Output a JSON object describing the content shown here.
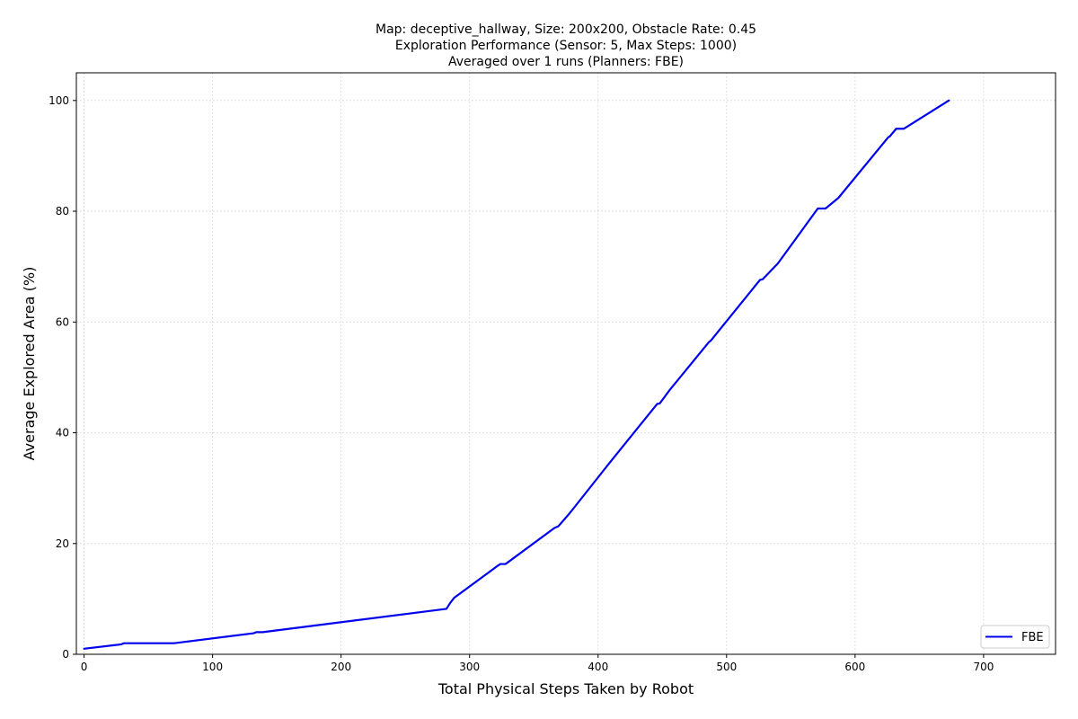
{
  "chart_data": {
    "type": "line",
    "title_lines": [
      "Map: deceptive_hallway, Size: 200x200, Obstacle Rate: 0.45",
      "Exploration Performance (Sensor: 5, Max Steps: 1000)",
      "Averaged over 1 runs (Planners: FBE)"
    ],
    "xlabel": "Total Physical Steps Taken by Robot",
    "ylabel": "Average Explored Area (%)",
    "xlim": [
      -6,
      756
    ],
    "ylim": [
      0,
      105
    ],
    "xticks": [
      0,
      100,
      200,
      300,
      400,
      500,
      600,
      700
    ],
    "yticks": [
      0,
      20,
      40,
      60,
      80,
      100
    ],
    "grid": true,
    "legend_position": "lower-right",
    "series": [
      {
        "name": "FBE",
        "color": "#0000ee",
        "x": [
          0,
          29,
          31,
          70,
          132,
          134,
          139,
          282,
          285,
          288,
          322,
          324,
          328,
          366,
          369,
          378,
          407,
          408,
          446,
          448,
          456,
          486,
          488,
          526,
          528,
          540,
          571,
          577,
          587,
          626,
          627,
          632,
          638,
          673
        ],
        "y": [
          1,
          1.8,
          2,
          2,
          3.8,
          4,
          4,
          8.2,
          9.3,
          10.2,
          16,
          16.3,
          16.3,
          22.8,
          23.1,
          25.5,
          34,
          34.3,
          45.2,
          45.3,
          47.8,
          56.3,
          56.7,
          67.6,
          67.7,
          70.6,
          80.5,
          80.5,
          82.4,
          93.4,
          93.5,
          94.9,
          94.9,
          100
        ]
      }
    ]
  }
}
